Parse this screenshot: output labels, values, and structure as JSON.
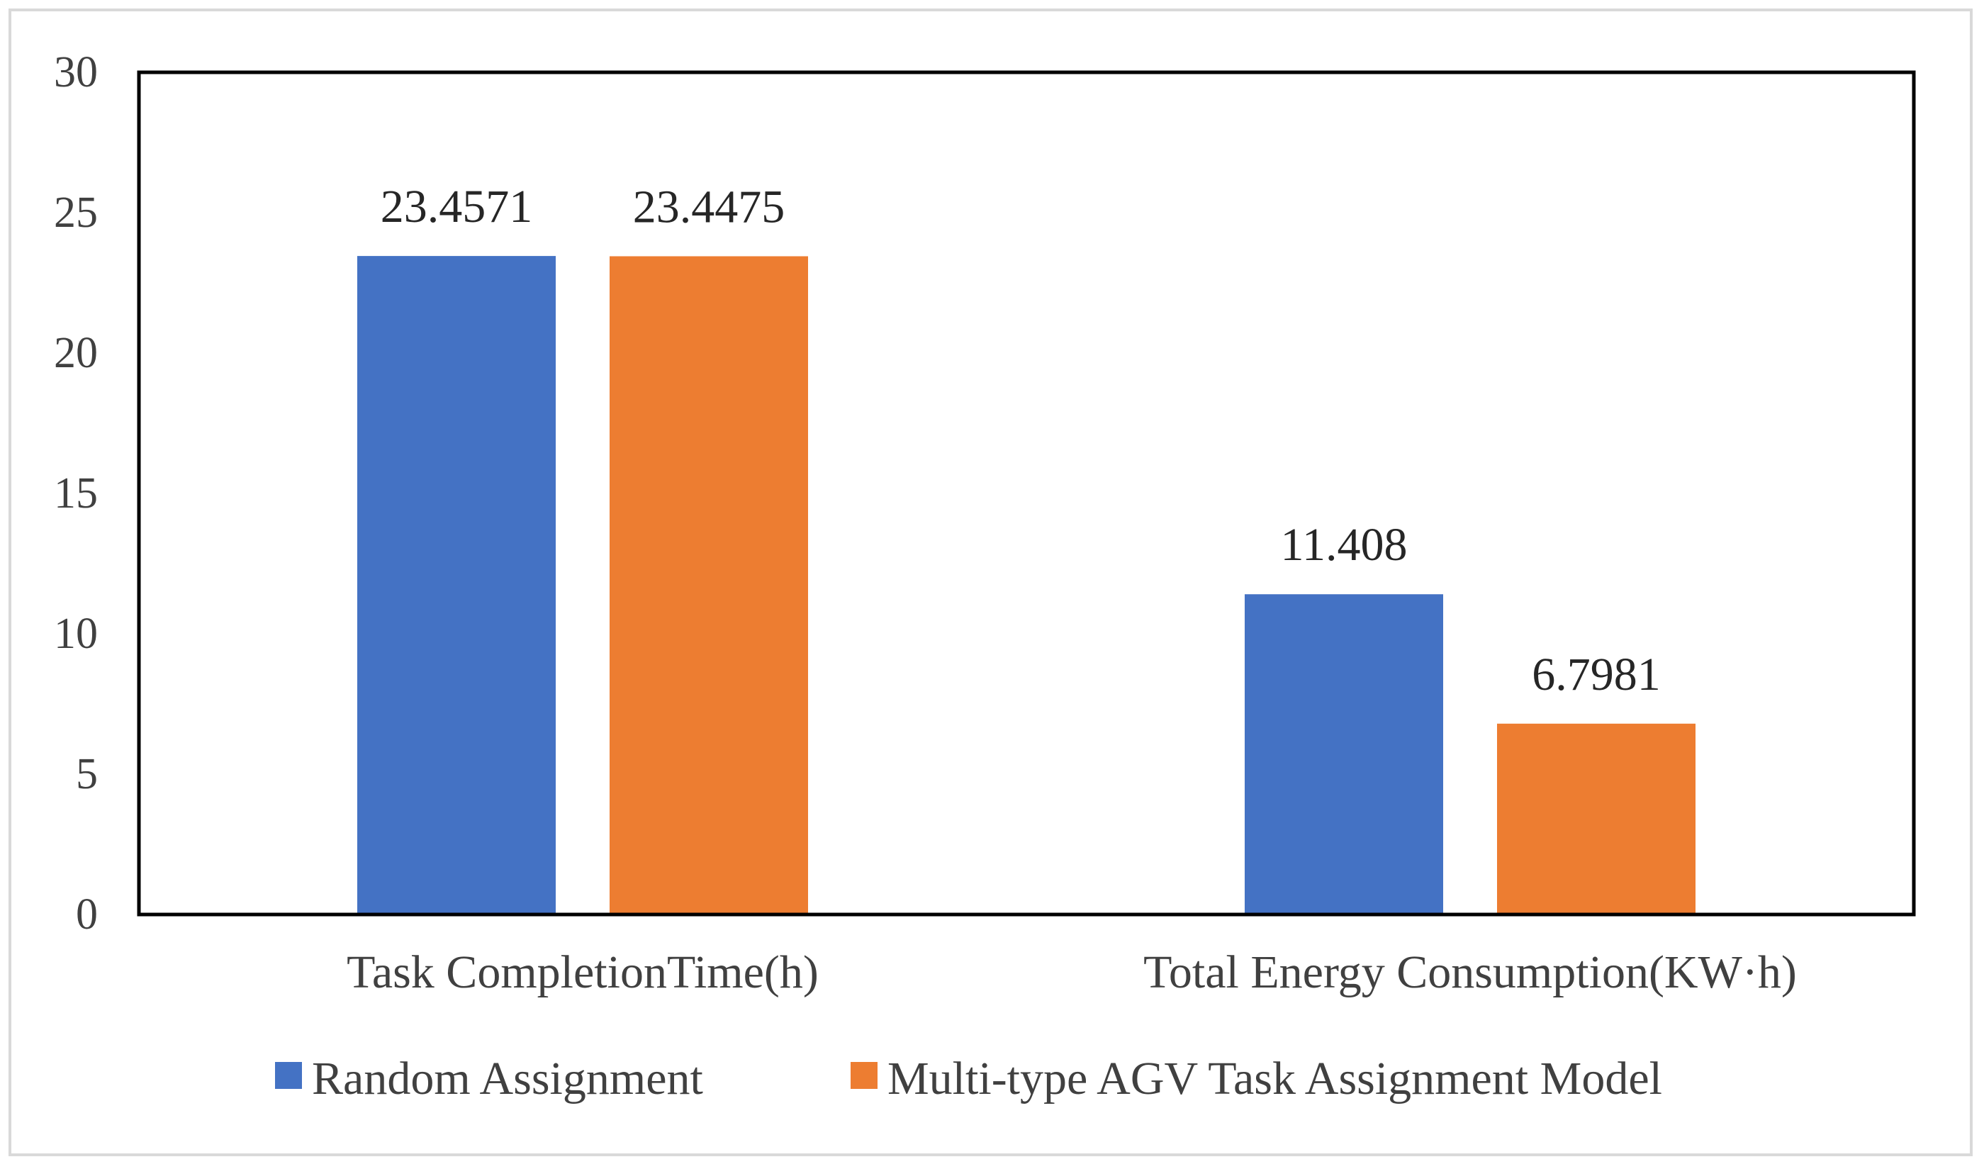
{
  "chart_data": {
    "type": "bar",
    "categories": [
      "Task CompletionTime(h)",
      "Total Energy Consumption(KW·h)"
    ],
    "series": [
      {
        "name": "Random Assignment",
        "values": [
          23.4571,
          11.408
        ],
        "labels": [
          "23.4571",
          "11.408"
        ],
        "color": "#4472C4"
      },
      {
        "name": "Multi-type AGV Task Assignment Model",
        "values": [
          23.4475,
          6.7981
        ],
        "labels": [
          "23.4475",
          "6.7981"
        ],
        "color": "#ED7D31"
      }
    ],
    "ylim": [
      0,
      30
    ],
    "yticks": [
      "0",
      "5",
      "10",
      "15",
      "20",
      "25",
      "30"
    ],
    "title": "",
    "xlabel": "",
    "ylabel": "",
    "legend_position": "bottom"
  }
}
